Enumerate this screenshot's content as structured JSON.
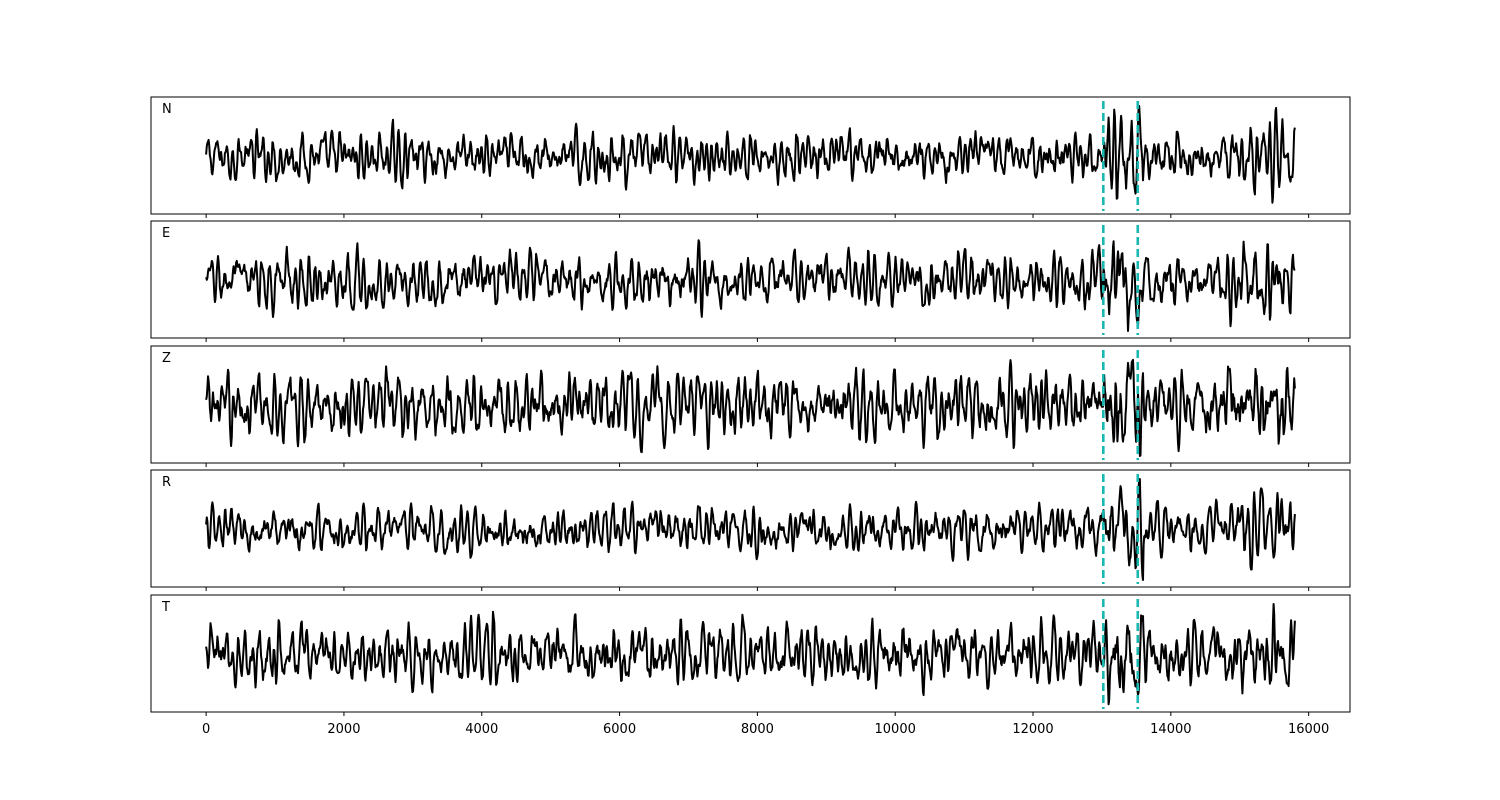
{
  "chart_data": {
    "type": "line",
    "title": "",
    "xlabel": "",
    "ylabel": "",
    "xlim": [
      -800,
      16600
    ],
    "x_ticks": [
      0,
      2000,
      4000,
      6000,
      8000,
      10000,
      12000,
      14000,
      16000
    ],
    "x_tick_labels": [
      "0",
      "2000",
      "4000",
      "6000",
      "8000",
      "10000",
      "12000",
      "14000",
      "16000"
    ],
    "shared_x": true,
    "y_ticks_visible": false,
    "grid": false,
    "trace_x_range": [
      0,
      15800
    ],
    "pick_markers": {
      "color": "#1ab7b0",
      "style": "dashed",
      "x": [
        13020,
        13520
      ]
    },
    "panels": [
      {
        "label": "N",
        "trace": "seismogram",
        "amplitude_relative": 1.0
      },
      {
        "label": "E",
        "trace": "seismogram",
        "amplitude_relative": 1.0
      },
      {
        "label": "Z",
        "trace": "seismogram",
        "amplitude_relative": 1.0
      },
      {
        "label": "R",
        "trace": "seismogram",
        "amplitude_relative": 1.0
      },
      {
        "label": "T",
        "trace": "seismogram",
        "amplitude_relative": 1.0
      }
    ],
    "trace_color": "#000000"
  }
}
